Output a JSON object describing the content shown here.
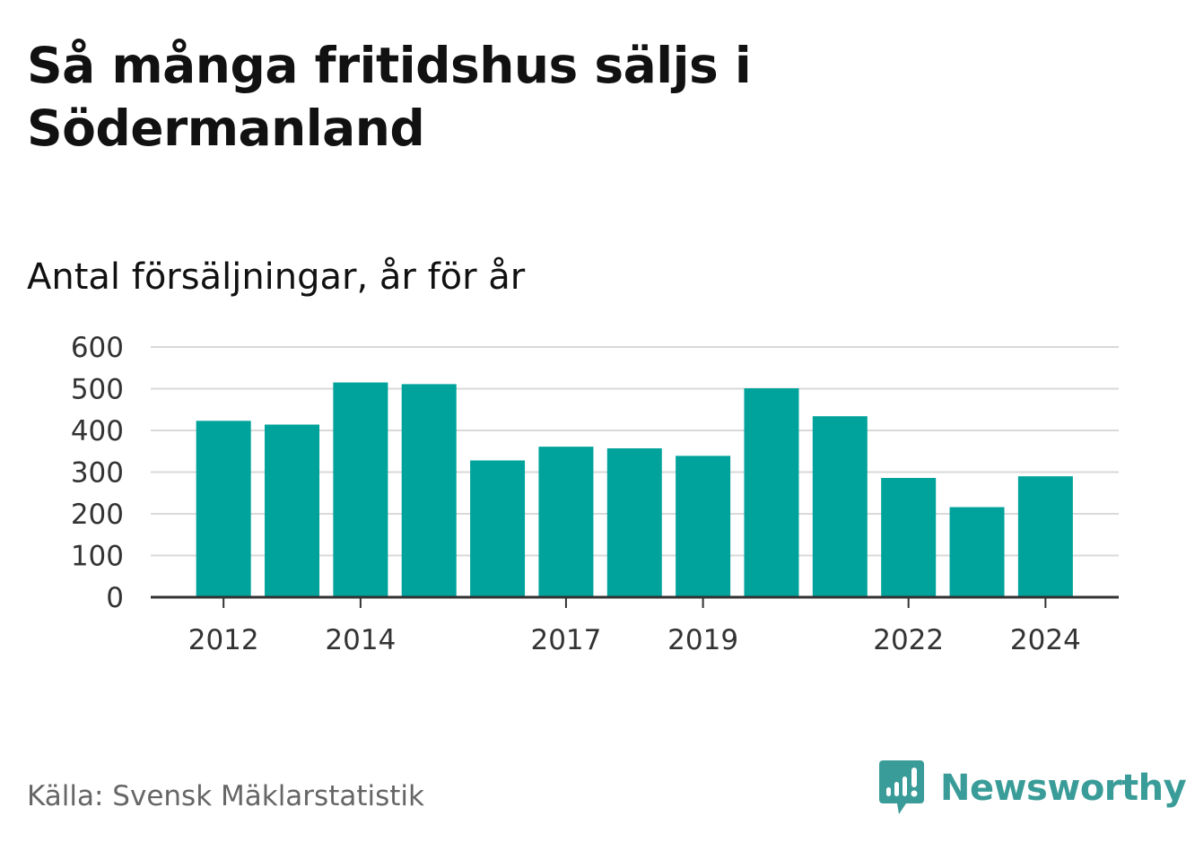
{
  "title": "Så många fritidshus säljs i Södermanland",
  "subtitle": "Antal försäljningar, år för år",
  "source": "Källa: Svensk Mäklarstatistik",
  "brand": {
    "name": "Newsworthy",
    "icon": "newsworthy-logo-icon",
    "color": "#3a9c98"
  },
  "colors": {
    "bar": "#00a39b",
    "grid": "#d9d9d9",
    "axis": "#333333"
  },
  "chart_data": {
    "type": "bar",
    "categories": [
      "2012",
      "2013",
      "2014",
      "2015",
      "2016",
      "2017",
      "2018",
      "2019",
      "2020",
      "2021",
      "2022",
      "2023",
      "2024"
    ],
    "values": [
      423,
      414,
      515,
      511,
      328,
      361,
      357,
      339,
      501,
      434,
      286,
      216,
      290
    ],
    "x_tick_labels": [
      "2012",
      "2014",
      "2017",
      "2019",
      "2022",
      "2024"
    ],
    "y_ticks": [
      0,
      100,
      200,
      300,
      400,
      500,
      600
    ],
    "ylim": [
      0,
      600
    ],
    "title": "Så många fritidshus säljs i Södermanland",
    "xlabel": "",
    "ylabel": "",
    "grid": true,
    "legend": "none"
  }
}
